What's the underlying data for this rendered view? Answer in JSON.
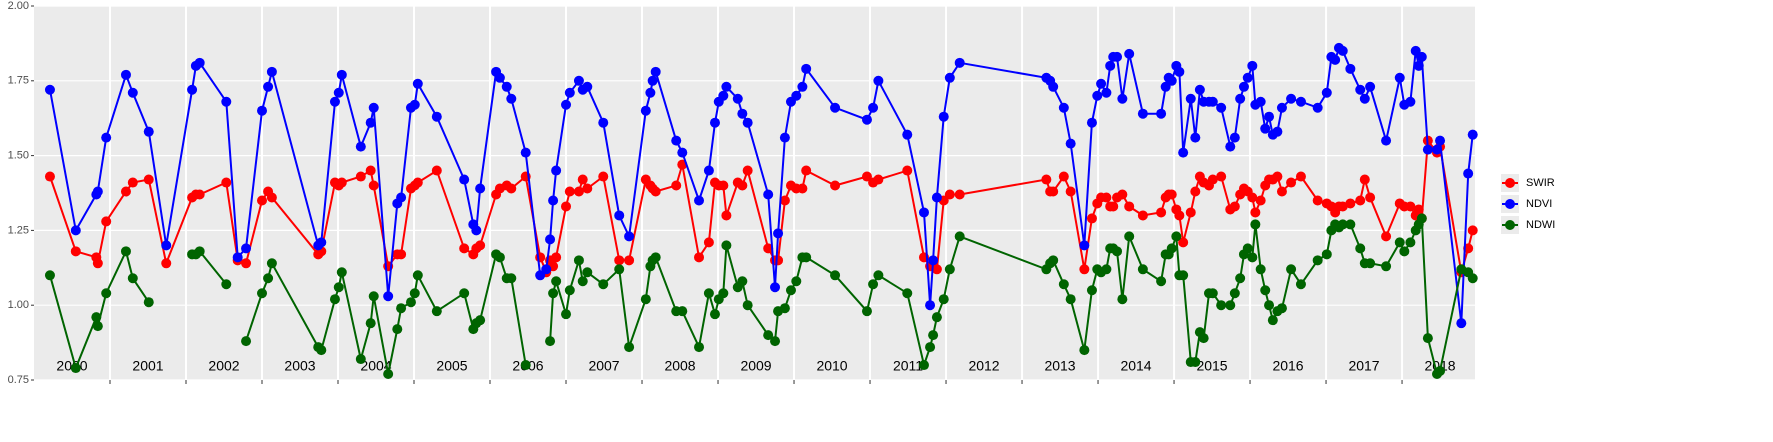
{
  "chart_data": {
    "type": "line",
    "x": [
      2000.21,
      2000.55,
      2000.82,
      2000.84,
      2000.95,
      2001.21,
      2001.3,
      2001.51,
      2001.74,
      2002.08,
      2002.13,
      2002.18,
      2002.53,
      2002.68,
      2002.79,
      2003.0,
      2003.08,
      2003.13,
      2003.74,
      2003.78,
      2003.96,
      2004.01,
      2004.05,
      2004.3,
      2004.43,
      2004.47,
      2004.66,
      2004.78,
      2004.83,
      2004.96,
      2005.01,
      2005.05,
      2005.3,
      2005.66,
      2005.78,
      2005.82,
      2005.87,
      2006.08,
      2006.13,
      2006.22,
      2006.28,
      2006.47,
      2006.66,
      2006.74,
      2006.79,
      2006.83,
      2006.87,
      2007.0,
      2007.05,
      2007.17,
      2007.22,
      2007.28,
      2007.49,
      2007.7,
      2007.83,
      2008.05,
      2008.11,
      2008.14,
      2008.18,
      2008.45,
      2008.53,
      2008.75,
      2008.88,
      2008.96,
      2009.01,
      2009.07,
      2009.11,
      2009.26,
      2009.32,
      2009.39,
      2009.66,
      2009.75,
      2009.79,
      2009.88,
      2009.96,
      2010.03,
      2010.11,
      2010.16,
      2010.54,
      2010.96,
      2011.04,
      2011.11,
      2011.49,
      2011.71,
      2011.79,
      2011.83,
      2011.88,
      2011.97,
      2012.05,
      2012.18,
      2013.32,
      2013.37,
      2013.41,
      2013.55,
      2013.64,
      2013.82,
      2013.92,
      2013.99,
      2014.04,
      2014.11,
      2014.16,
      2014.2,
      2014.25,
      2014.32,
      2014.41,
      2014.59,
      2014.83,
      2014.89,
      2014.93,
      2014.97,
      2015.03,
      2015.07,
      2015.12,
      2015.22,
      2015.28,
      2015.34,
      2015.39,
      2015.46,
      2015.51,
      2015.62,
      2015.74,
      2015.8,
      2015.87,
      2015.92,
      2015.97,
      2016.03,
      2016.07,
      2016.14,
      2016.2,
      2016.25,
      2016.3,
      2016.36,
      2016.42,
      2016.54,
      2016.67,
      2016.89,
      2017.01,
      2017.07,
      2017.12,
      2017.17,
      2017.22,
      2017.32,
      2017.45,
      2017.51,
      2017.58,
      2017.79,
      2017.97,
      2018.03,
      2018.11,
      2018.18,
      2018.22,
      2018.26,
      2018.34,
      2018.46,
      2018.5,
      2018.78,
      2018.87,
      2018.93
    ],
    "series": [
      {
        "name": "SWIR",
        "color": "#ff0000",
        "values": [
          1.43,
          1.18,
          1.16,
          1.14,
          1.28,
          1.38,
          1.41,
          1.42,
          1.14,
          1.36,
          1.37,
          1.37,
          1.41,
          1.15,
          1.14,
          1.35,
          1.38,
          1.36,
          1.17,
          1.18,
          1.41,
          1.4,
          1.41,
          1.43,
          1.45,
          1.4,
          1.13,
          1.17,
          1.17,
          1.39,
          1.4,
          1.41,
          1.45,
          1.19,
          1.17,
          1.19,
          1.2,
          1.37,
          1.39,
          1.4,
          1.39,
          1.43,
          1.16,
          1.11,
          1.15,
          1.13,
          1.16,
          1.33,
          1.38,
          1.38,
          1.42,
          1.39,
          1.43,
          1.15,
          1.15,
          1.42,
          1.4,
          1.39,
          1.38,
          1.4,
          1.47,
          1.16,
          1.21,
          1.41,
          1.4,
          1.4,
          1.3,
          1.41,
          1.4,
          1.45,
          1.19,
          1.15,
          1.15,
          1.35,
          1.4,
          1.39,
          1.39,
          1.45,
          1.4,
          1.43,
          1.41,
          1.42,
          1.45,
          1.16,
          1.13,
          1.13,
          1.12,
          1.35,
          1.37,
          1.37,
          1.42,
          1.38,
          1.38,
          1.43,
          1.38,
          1.12,
          1.29,
          1.34,
          1.36,
          1.36,
          1.33,
          1.33,
          1.36,
          1.37,
          1.33,
          1.3,
          1.31,
          1.36,
          1.37,
          1.37,
          1.32,
          1.3,
          1.21,
          1.31,
          1.38,
          1.43,
          1.41,
          1.4,
          1.42,
          1.43,
          1.32,
          1.33,
          1.37,
          1.39,
          1.38,
          1.36,
          1.31,
          1.35,
          1.4,
          1.42,
          1.42,
          1.43,
          1.38,
          1.41,
          1.43,
          1.35,
          1.34,
          1.33,
          1.31,
          1.33,
          1.33,
          1.34,
          1.35,
          1.42,
          1.36,
          1.23,
          1.34,
          1.33,
          1.33,
          1.3,
          1.32,
          1.29,
          1.55,
          1.51,
          1.53,
          1.11,
          1.19,
          1.25
        ]
      },
      {
        "name": "NDVI",
        "color": "#0000ff",
        "values": [
          1.72,
          1.25,
          1.37,
          1.38,
          1.56,
          1.77,
          1.71,
          1.58,
          1.2,
          1.72,
          1.8,
          1.81,
          1.68,
          1.16,
          1.19,
          1.65,
          1.73,
          1.78,
          1.2,
          1.21,
          1.68,
          1.71,
          1.77,
          1.53,
          1.61,
          1.66,
          1.03,
          1.34,
          1.36,
          1.66,
          1.67,
          1.74,
          1.63,
          1.42,
          1.27,
          1.25,
          1.39,
          1.78,
          1.76,
          1.73,
          1.69,
          1.51,
          1.1,
          1.12,
          1.22,
          1.35,
          1.45,
          1.67,
          1.71,
          1.75,
          1.72,
          1.73,
          1.61,
          1.3,
          1.23,
          1.65,
          1.71,
          1.75,
          1.78,
          1.55,
          1.51,
          1.35,
          1.45,
          1.61,
          1.68,
          1.7,
          1.73,
          1.69,
          1.64,
          1.61,
          1.37,
          1.06,
          1.24,
          1.56,
          1.68,
          1.7,
          1.73,
          1.79,
          1.66,
          1.62,
          1.66,
          1.75,
          1.57,
          1.31,
          1.0,
          1.15,
          1.36,
          1.63,
          1.76,
          1.81,
          1.76,
          1.75,
          1.73,
          1.66,
          1.54,
          1.2,
          1.61,
          1.7,
          1.74,
          1.71,
          1.8,
          1.83,
          1.83,
          1.69,
          1.84,
          1.64,
          1.64,
          1.73,
          1.76,
          1.75,
          1.8,
          1.78,
          1.51,
          1.69,
          1.56,
          1.72,
          1.68,
          1.68,
          1.68,
          1.66,
          1.53,
          1.56,
          1.69,
          1.73,
          1.76,
          1.8,
          1.67,
          1.68,
          1.59,
          1.63,
          1.57,
          1.58,
          1.66,
          1.69,
          1.68,
          1.66,
          1.71,
          1.83,
          1.82,
          1.86,
          1.85,
          1.79,
          1.72,
          1.69,
          1.73,
          1.55,
          1.76,
          1.67,
          1.68,
          1.85,
          1.8,
          1.83,
          1.52,
          1.52,
          1.55,
          0.94,
          1.44,
          1.57
        ]
      },
      {
        "name": "NDWI",
        "color": "#006400",
        "values": [
          1.1,
          0.79,
          0.96,
          0.93,
          1.04,
          1.18,
          1.09,
          1.01,
          null,
          1.17,
          1.17,
          1.18,
          1.07,
          null,
          0.88,
          1.04,
          1.09,
          1.14,
          0.86,
          0.85,
          1.02,
          1.06,
          1.11,
          0.82,
          0.94,
          1.03,
          0.77,
          0.92,
          0.99,
          1.01,
          1.04,
          1.1,
          0.98,
          1.04,
          0.92,
          0.94,
          0.95,
          1.17,
          1.16,
          1.09,
          1.09,
          0.8,
          null,
          null,
          0.88,
          1.04,
          1.08,
          0.97,
          1.05,
          1.15,
          1.08,
          1.11,
          1.07,
          1.12,
          0.86,
          1.02,
          1.13,
          1.15,
          1.16,
          0.98,
          0.98,
          0.86,
          1.04,
          0.97,
          1.02,
          1.04,
          1.2,
          1.06,
          1.08,
          1.0,
          0.9,
          0.88,
          0.98,
          0.99,
          1.05,
          1.08,
          1.16,
          1.16,
          1.1,
          0.98,
          1.07,
          1.1,
          1.04,
          0.8,
          0.86,
          0.9,
          0.96,
          1.02,
          1.12,
          1.23,
          1.12,
          1.14,
          1.15,
          1.07,
          1.02,
          0.85,
          1.05,
          1.12,
          1.11,
          1.12,
          1.19,
          1.19,
          1.18,
          1.02,
          1.23,
          1.12,
          1.08,
          1.17,
          1.17,
          1.19,
          1.23,
          1.1,
          1.1,
          0.81,
          0.81,
          0.91,
          0.89,
          1.04,
          1.04,
          1.0,
          1.0,
          1.04,
          1.09,
          1.17,
          1.19,
          1.16,
          1.27,
          1.12,
          1.05,
          1.0,
          0.95,
          0.98,
          0.99,
          1.12,
          1.07,
          1.15,
          1.17,
          1.25,
          1.27,
          1.26,
          1.27,
          1.27,
          1.19,
          1.14,
          1.14,
          1.13,
          1.21,
          1.18,
          1.21,
          1.25,
          1.27,
          1.29,
          0.89,
          0.77,
          0.78,
          1.12,
          1.11,
          1.09
        ]
      }
    ],
    "xlim": [
      2000,
      2018.96
    ],
    "xticks": [
      2001,
      2002,
      2003,
      2004,
      2005,
      2006,
      2007,
      2008,
      2009,
      2010,
      2011,
      2012,
      2013,
      2014,
      2015,
      2016,
      2017,
      2018
    ],
    "year_labels": [
      {
        "value": 2000.5,
        "label": "2000"
      },
      {
        "value": 2001.5,
        "label": "2001"
      },
      {
        "value": 2002.5,
        "label": "2002"
      },
      {
        "value": 2003.5,
        "label": "2003"
      },
      {
        "value": 2004.5,
        "label": "2004"
      },
      {
        "value": 2005.5,
        "label": "2005"
      },
      {
        "value": 2006.5,
        "label": "2006"
      },
      {
        "value": 2007.5,
        "label": "2007"
      },
      {
        "value": 2008.5,
        "label": "2008"
      },
      {
        "value": 2009.5,
        "label": "2009"
      },
      {
        "value": 2010.5,
        "label": "2010"
      },
      {
        "value": 2011.5,
        "label": "2011"
      },
      {
        "value": 2012.5,
        "label": "2012"
      },
      {
        "value": 2013.5,
        "label": "2013"
      },
      {
        "value": 2014.5,
        "label": "2014"
      },
      {
        "value": 2015.5,
        "label": "2015"
      },
      {
        "value": 2016.5,
        "label": "2016"
      },
      {
        "value": 2017.5,
        "label": "2017"
      },
      {
        "value": 2018.5,
        "label": "2018"
      }
    ],
    "ylim": [
      0.75,
      2.0
    ],
    "yticks": [
      {
        "value": 0.75,
        "label": "0.75"
      },
      {
        "value": 1,
        "label": "1.00"
      },
      {
        "value": 1.25,
        "label": "1.25"
      },
      {
        "value": 1.5,
        "label": "1.50"
      },
      {
        "value": 1.75,
        "label": "1.75"
      },
      {
        "value": 2,
        "label": "2.00"
      }
    ],
    "grid": true,
    "legend": "right"
  }
}
